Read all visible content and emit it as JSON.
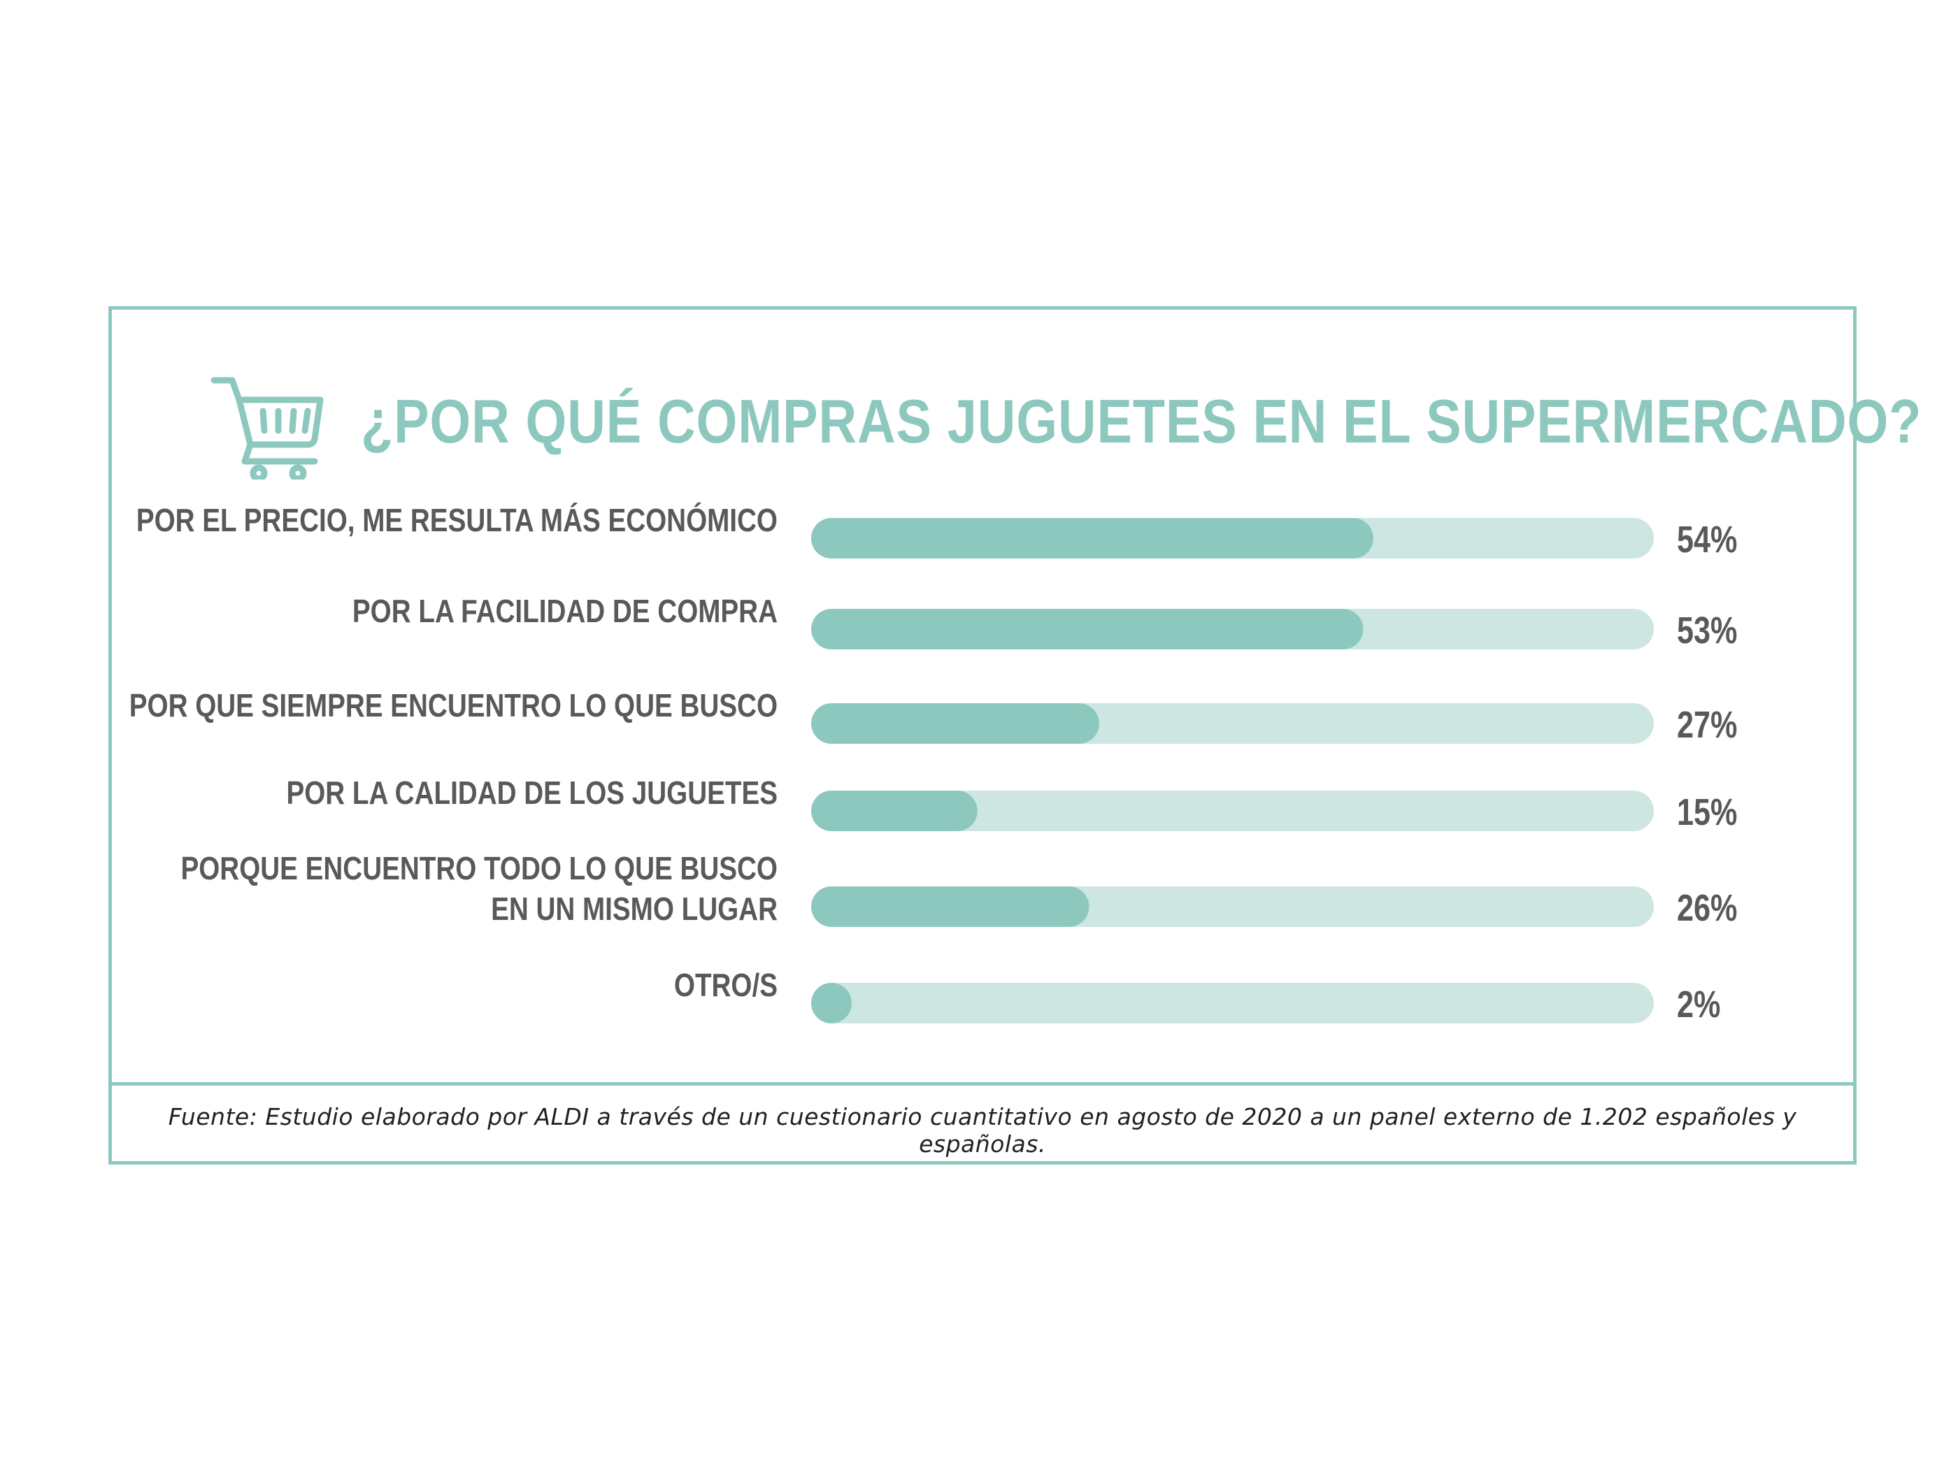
{
  "title": "¿POR QUÉ COMPRAS JUGUETES EN EL SUPERMERCADO?",
  "source": "Fuente: Estudio elaborado por ALDI a través de un cuestionario cuantitativo en agosto de 2020 a un panel externo de 1.202 españoles y españolas.",
  "icon": "shopping-cart-icon",
  "colors": {
    "accent": "#8dc8bf",
    "track": "#cde6e1",
    "text": "#58595b"
  },
  "chart_data": {
    "type": "bar",
    "orientation": "horizontal",
    "title": "¿POR QUÉ COMPRAS JUGUETES EN EL SUPERMERCADO?",
    "categories": [
      [
        "POR EL PRECIO, ME RESULTA MÁS ECONÓMICO"
      ],
      [
        "POR LA FACILIDAD DE COMPRA"
      ],
      [
        "POR QUE SIEMPRE ENCUENTRO LO QUE BUSCO"
      ],
      [
        "POR LA CALIDAD DE LOS JUGUETES"
      ],
      [
        "PORQUE ENCUENTRO TODO LO QUE BUSCO",
        "EN UN MISMO LUGAR"
      ],
      [
        "OTRO/S"
      ]
    ],
    "values": [
      54,
      53,
      27,
      15,
      26,
      2
    ],
    "value_labels": [
      "54%",
      "53%",
      "27%",
      "15%",
      "26%",
      "2%"
    ],
    "unit": "%",
    "xlim": [
      0,
      100
    ],
    "grid": false,
    "legend": "none"
  }
}
